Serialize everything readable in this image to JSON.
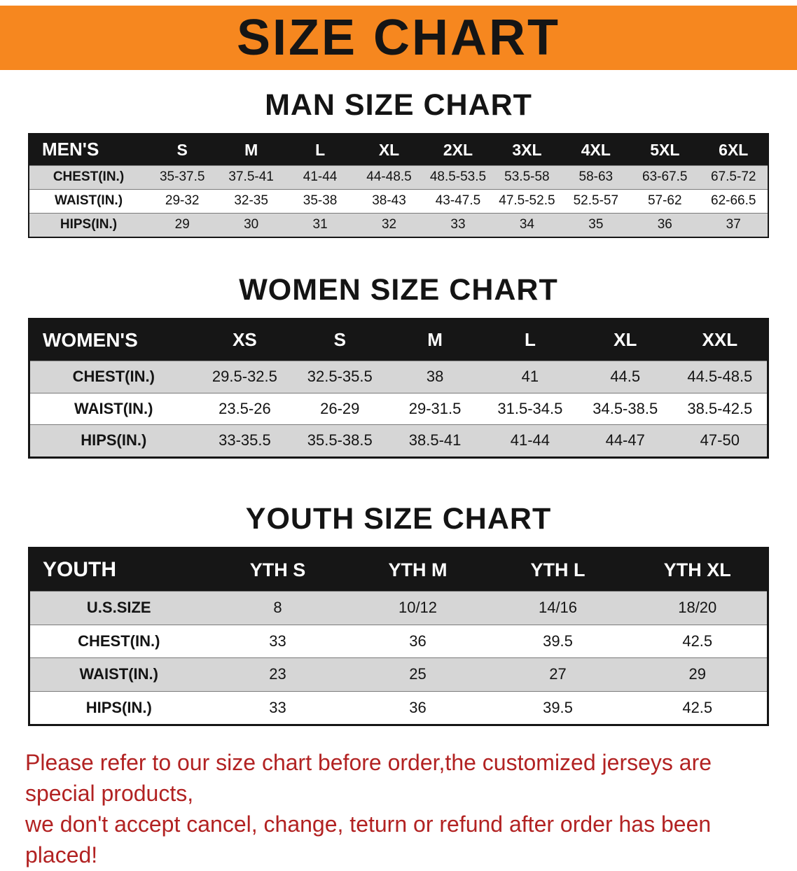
{
  "colors": {
    "banner-orange": "#f6871f",
    "table-header-bg": "#161616",
    "stripe-gray": "#d6d6d6",
    "disclaimer-red": "#b22222"
  },
  "banner": {
    "title": "SIZE CHART"
  },
  "sections": [
    {
      "id": "men",
      "heading": "MAN SIZE CHART",
      "table": {
        "header": [
          "MEN'S",
          "S",
          "M",
          "L",
          "XL",
          "2XL",
          "3XL",
          "4XL",
          "5XL",
          "6XL"
        ],
        "rows": [
          [
            "CHEST(IN.)",
            "35-37.5",
            "37.5-41",
            "41-44",
            "44-48.5",
            "48.5-53.5",
            "53.5-58",
            "58-63",
            "63-67.5",
            "67.5-72"
          ],
          [
            "WAIST(IN.)",
            "29-32",
            "32-35",
            "35-38",
            "38-43",
            "43-47.5",
            "47.5-52.5",
            "52.5-57",
            "57-62",
            "62-66.5"
          ],
          [
            "HIPS(IN.)",
            "29",
            "30",
            "31",
            "32",
            "33",
            "34",
            "35",
            "36",
            "37"
          ]
        ]
      }
    },
    {
      "id": "women",
      "heading": "WOMEN SIZE CHART",
      "table": {
        "header": [
          "WOMEN'S",
          "XS",
          "S",
          "M",
          "L",
          "XL",
          "XXL"
        ],
        "rows": [
          [
            "CHEST(IN.)",
            "29.5-32.5",
            "32.5-35.5",
            "38",
            "41",
            "44.5",
            "44.5-48.5"
          ],
          [
            "WAIST(IN.)",
            "23.5-26",
            "26-29",
            "29-31.5",
            "31.5-34.5",
            "34.5-38.5",
            "38.5-42.5"
          ],
          [
            "HIPS(IN.)",
            "33-35.5",
            "35.5-38.5",
            "38.5-41",
            "41-44",
            "44-47",
            "47-50"
          ]
        ]
      }
    },
    {
      "id": "youth",
      "heading": "YOUTH SIZE CHART",
      "table": {
        "header": [
          "YOUTH",
          "YTH S",
          "YTH M",
          "YTH L",
          "YTH XL"
        ],
        "rows": [
          [
            "U.S.SIZE",
            "8",
            "10/12",
            "14/16",
            "18/20"
          ],
          [
            "CHEST(IN.)",
            "33",
            "36",
            "39.5",
            "42.5"
          ],
          [
            "WAIST(IN.)",
            "23",
            "25",
            "27",
            "29"
          ],
          [
            "HIPS(IN.)",
            "33",
            "36",
            "39.5",
            "42.5"
          ]
        ]
      }
    }
  ],
  "disclaimer": {
    "line1": "Please refer to our size chart before order,the customized jerseys are special products,",
    "line2": "we don't accept cancel, change, teturn or refund after order has been placed!"
  }
}
